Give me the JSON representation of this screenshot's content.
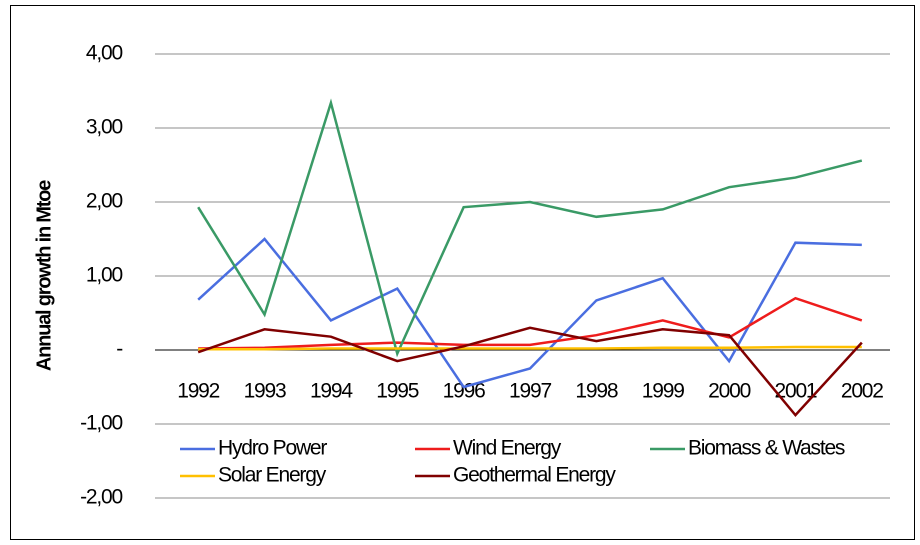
{
  "chart_data": {
    "type": "line",
    "y_label": "Annual growth in Mtoe",
    "categories": [
      "1992",
      "1993",
      "1994",
      "1995",
      "1996",
      "1997",
      "1998",
      "1999",
      "2000",
      "2001",
      "2002"
    ],
    "series": [
      {
        "name": "Hydro Power",
        "color": "#4a6ee0",
        "values": [
          0.68,
          1.5,
          0.4,
          0.83,
          -0.5,
          -0.25,
          0.67,
          0.97,
          -0.15,
          1.45,
          1.42
        ]
      },
      {
        "name": "Wind Energy",
        "color": "#ee1c1c",
        "values": [
          0.02,
          0.03,
          0.07,
          0.1,
          0.07,
          0.07,
          0.2,
          0.4,
          0.17,
          0.7,
          0.4
        ]
      },
      {
        "name": "Biomass & Wastes",
        "color": "#3a9a66",
        "values": [
          1.93,
          0.48,
          3.34,
          -0.05,
          1.93,
          2.0,
          1.8,
          1.9,
          2.2,
          2.33,
          2.56
        ]
      },
      {
        "name": "Solar Energy",
        "color": "#ffc000",
        "values": [
          0.01,
          0.01,
          0.02,
          0.02,
          0.02,
          0.02,
          0.02,
          0.03,
          0.03,
          0.04,
          0.04
        ]
      },
      {
        "name": "Geothermal Energy",
        "color": "#800000",
        "values": [
          -0.03,
          0.28,
          0.18,
          -0.15,
          0.05,
          0.3,
          0.12,
          0.28,
          0.2,
          -0.88,
          0.1
        ]
      }
    ],
    "ylim": [
      -2,
      4
    ],
    "yticks": [
      {
        "value": -2,
        "label": "-2,00"
      },
      {
        "value": -1,
        "label": "-1,00"
      },
      {
        "value": 0,
        "label": "-"
      },
      {
        "value": 1,
        "label": "1,00"
      },
      {
        "value": 2,
        "label": "2,00"
      },
      {
        "value": 3,
        "label": "3,00"
      },
      {
        "value": 4,
        "label": "4,00"
      }
    ],
    "grid": true
  }
}
